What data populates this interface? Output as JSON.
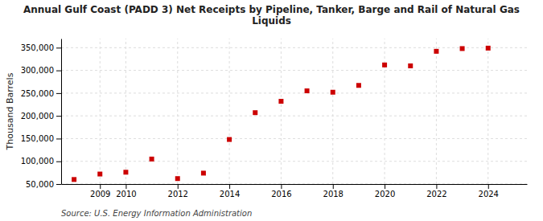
{
  "chart_data": {
    "type": "scatter",
    "title": "Annual Gulf Coast (PADD 3) Net Receipts by Pipeline, Tanker, Barge and Rail of Natural Gas\nLiquids",
    "ylabel": "Thousand Barrels",
    "source": "Source: U.S. Energy Information Administration",
    "x": [
      2008,
      2009,
      2010,
      2011,
      2012,
      2013,
      2014,
      2015,
      2016,
      2017,
      2018,
      2019,
      2020,
      2021,
      2022,
      2023,
      2024
    ],
    "values": [
      60000,
      72000,
      76000,
      105000,
      62000,
      74000,
      148000,
      207000,
      232000,
      255000,
      252000,
      267000,
      312000,
      310000,
      342000,
      348000,
      349000
    ],
    "color": "#cc0000",
    "marker": "square",
    "xlim": [
      2007.5,
      2025.5
    ],
    "ylim": [
      50000,
      370000
    ],
    "xticks": [
      2009,
      2010,
      2012,
      2014,
      2016,
      2018,
      2020,
      2022,
      2024
    ],
    "yticks": [
      {
        "value": 50000,
        "label": "50,000"
      },
      {
        "value": 100000,
        "label": "100,000"
      },
      {
        "value": 150000,
        "label": "150,000"
      },
      {
        "value": 200000,
        "label": "200,000"
      },
      {
        "value": 250000,
        "label": "250,000"
      },
      {
        "value": 300000,
        "label": "300,000"
      },
      {
        "value": 350000,
        "label": "350,000"
      }
    ],
    "grid": true
  }
}
